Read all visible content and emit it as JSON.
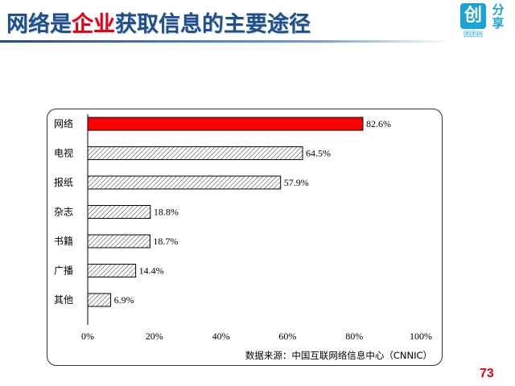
{
  "title": {
    "part1": "网络是",
    "highlight": "企业",
    "part2": "获取信息的主要途径"
  },
  "logo": {
    "box_char": "创",
    "side_chars": "分享",
    "sub": "团团创"
  },
  "colors": {
    "title": "#1f4e8c",
    "highlight": "#e60012",
    "highlight_bar": "#ff0000",
    "logo": "#1aa3d9"
  },
  "chart_data": {
    "type": "bar",
    "orientation": "horizontal",
    "categories": [
      "网络",
      "电视",
      "报纸",
      "杂志",
      "书籍",
      "广播",
      "其他"
    ],
    "values": [
      82.6,
      64.5,
      57.9,
      18.8,
      18.7,
      14.4,
      6.9
    ],
    "value_labels": [
      "82.6%",
      "64.5%",
      "57.9%",
      "18.8%",
      "18.7%",
      "14.4%",
      "6.9%"
    ],
    "highlight_index": 0,
    "xlim": [
      0,
      100
    ],
    "xticks": [
      "0%",
      "20%",
      "40%",
      "60%",
      "80%",
      "100%"
    ],
    "grid": false,
    "source": "数据来源：中国互联网络信息中心（CNNIC）"
  },
  "page_number": "73"
}
